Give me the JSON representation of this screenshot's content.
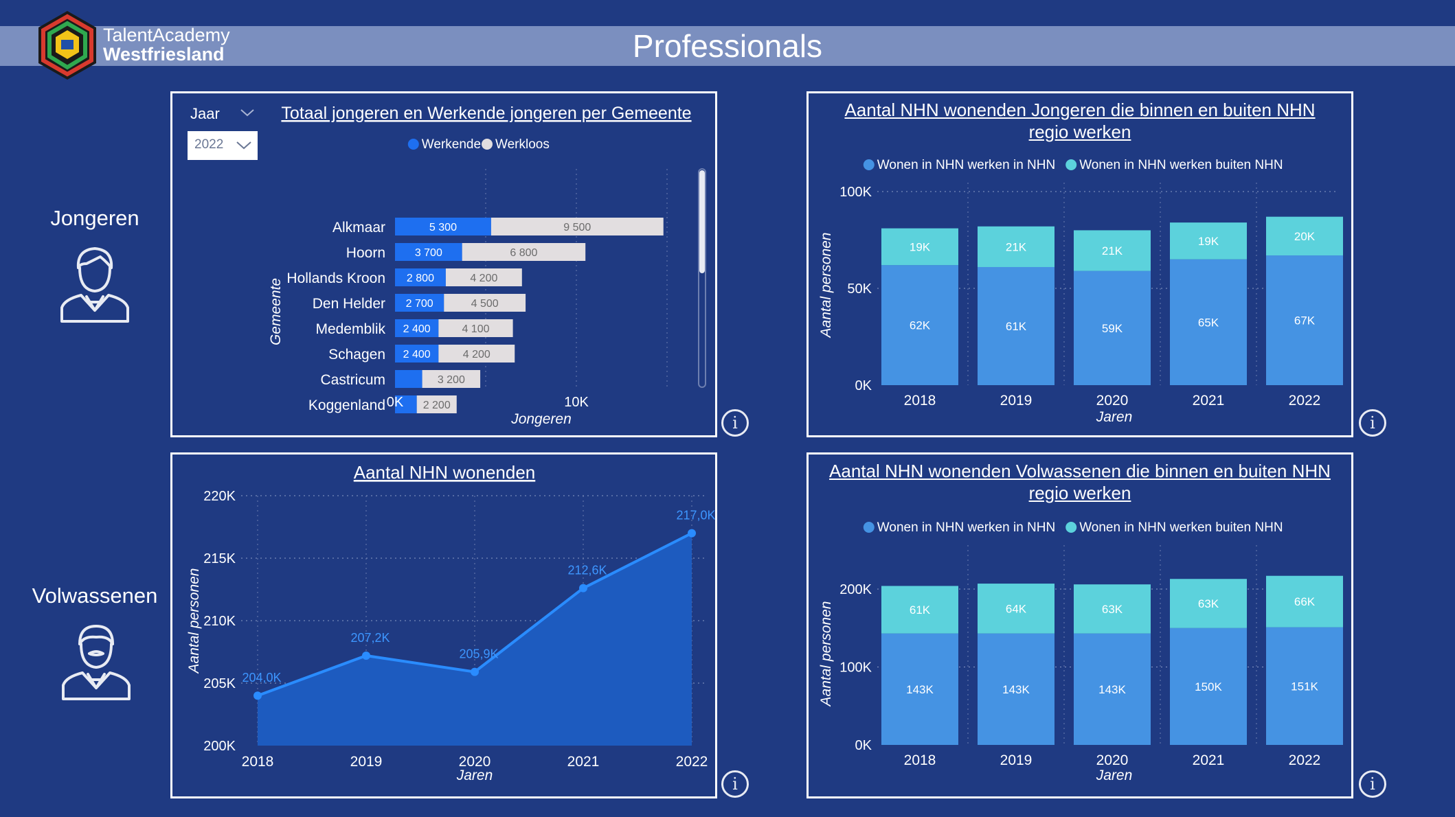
{
  "header": {
    "title": "Professionals",
    "logo_line1": "TalentAcademy",
    "logo_line2": "Westfriesland"
  },
  "sections": {
    "youth_label": "Jongeren",
    "adult_label": "Volwassenen"
  },
  "slicer": {
    "label": "Jaar",
    "value": "2022"
  },
  "colors": {
    "background": "#1f3a82",
    "dark_blue": "#1e6ff0",
    "grey": "#e2dee0",
    "mid_blue": "#4593e3",
    "cyan": "#5cd2dc",
    "line": "#2a8cff",
    "header_band": "#7b8fbf"
  },
  "icons": {
    "youth": "young-person-icon",
    "adult": "adult-person-icon",
    "info": "info-icon",
    "chevron": "chevron-down-icon"
  },
  "chart_data": [
    {
      "type": "bar",
      "orientation": "horizontal",
      "stacked": true,
      "title": "Totaal jongeren en Werkende jongeren per Gemeente",
      "xlabel": "Jongeren",
      "ylabel": "Gemeente",
      "xlim": [
        0,
        15000
      ],
      "x_ticks": [
        "0K",
        "10K"
      ],
      "legend": "top",
      "categories": [
        "Alkmaar",
        "Hoorn",
        "Hollands Kroon",
        "Den Helder",
        "Medemblik",
        "Schagen",
        "Castricum",
        "Koggenland"
      ],
      "series": [
        {
          "name": "Werkende",
          "values": [
            5300,
            3700,
            2800,
            2700,
            2400,
            2400,
            1500,
            1200
          ],
          "labels": [
            "5 300",
            "3 700",
            "2 800",
            "2 700",
            "2 400",
            "2 400",
            "",
            ""
          ]
        },
        {
          "name": "Werkloos",
          "values": [
            9500,
            6800,
            4200,
            4500,
            4100,
            4200,
            3200,
            2200
          ],
          "labels": [
            "9 500",
            "6 800",
            "4 200",
            "4 500",
            "4 100",
            "4 200",
            "3 200",
            "2 200"
          ]
        }
      ]
    },
    {
      "type": "bar",
      "stacked": true,
      "title": "Aantal NHN wonenden Jongeren die binnen en buiten NHN regio werken",
      "xlabel": "Jaren",
      "ylabel": "Aantal personen",
      "ylim": [
        0,
        100000
      ],
      "y_ticks": [
        "0K",
        "50K",
        "100K"
      ],
      "legend": "top",
      "categories": [
        "2018",
        "2019",
        "2020",
        "2021",
        "2022"
      ],
      "series": [
        {
          "name": "Wonen in NHN werken in NHN",
          "values": [
            62000,
            61000,
            59000,
            65000,
            67000
          ],
          "labels": [
            "62K",
            "61K",
            "59K",
            "65K",
            "67K"
          ]
        },
        {
          "name": "Wonen in NHN werken buiten NHN",
          "values": [
            19000,
            21000,
            21000,
            19000,
            20000
          ],
          "labels": [
            "19K",
            "21K",
            "21K",
            "19K",
            "20K"
          ]
        }
      ]
    },
    {
      "type": "area",
      "title": "Aantal NHN wonenden",
      "xlabel": "Jaren",
      "ylabel": "Aantal personen",
      "ylim": [
        200000,
        220000
      ],
      "y_ticks": [
        "200K",
        "205K",
        "210K",
        "215K",
        "220K"
      ],
      "categories": [
        "2018",
        "2019",
        "2020",
        "2021",
        "2022"
      ],
      "values": [
        204000,
        207200,
        205900,
        212600,
        217000
      ],
      "labels": [
        "204,0K",
        "207,2K",
        "205,9K",
        "212,6K",
        "217,0K"
      ]
    },
    {
      "type": "bar",
      "stacked": true,
      "title": "Aantal NHN wonenden Volwassenen die binnen en buiten NHN regio werken",
      "xlabel": "Jaren",
      "ylabel": "Aantal personen",
      "ylim": [
        0,
        200000
      ],
      "y_ticks": [
        "0K",
        "100K",
        "200K"
      ],
      "legend": "top",
      "categories": [
        "2018",
        "2019",
        "2020",
        "2021",
        "2022"
      ],
      "series": [
        {
          "name": "Wonen in NHN werken in NHN",
          "values": [
            143000,
            143000,
            143000,
            150000,
            151000
          ],
          "labels": [
            "143K",
            "143K",
            "143K",
            "150K",
            "151K"
          ]
        },
        {
          "name": "Wonen in NHN werken buiten NHN",
          "values": [
            61000,
            64000,
            63000,
            63000,
            66000
          ],
          "labels": [
            "61K",
            "64K",
            "63K",
            "63K",
            "66K"
          ]
        }
      ]
    }
  ]
}
